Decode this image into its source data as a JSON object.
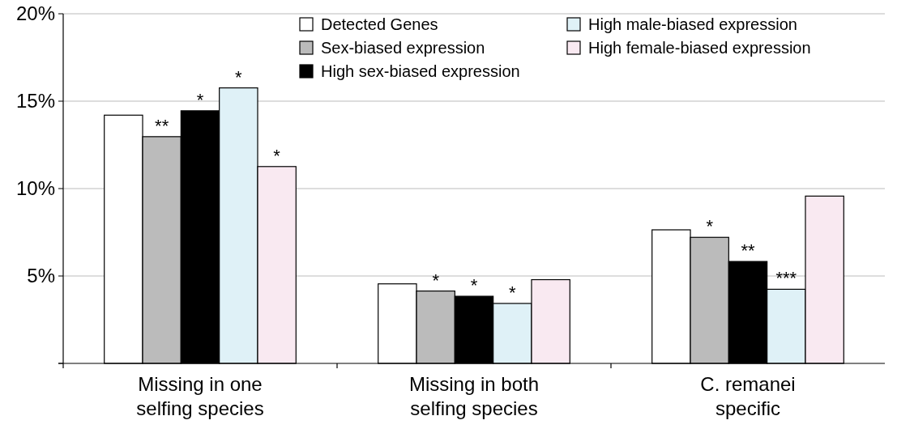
{
  "chart_data": {
    "type": "bar",
    "categories": [
      "Missing in one selfing species",
      "Missing in both selfing species",
      "C. remanei specific"
    ],
    "series": [
      {
        "name": "Detected Genes",
        "color": "#ffffff",
        "values": [
          14.2,
          4.55,
          7.64
        ]
      },
      {
        "name": "Sex-biased expression",
        "color": "#bbbbbb",
        "values": [
          12.97,
          4.14,
          7.21
        ],
        "value_labels": [
          "**",
          "*",
          "*"
        ]
      },
      {
        "name": "High sex-biased expression",
        "color": "#000000",
        "values": [
          14.45,
          3.84,
          5.83
        ],
        "value_labels": [
          "*",
          "*",
          "**"
        ]
      },
      {
        "name": "High male-biased expression",
        "color": "#dff1f7",
        "values": [
          15.76,
          3.43,
          4.24
        ],
        "value_labels": [
          "*",
          "*",
          "***"
        ]
      },
      {
        "name": "High female-biased expression",
        "color": "#f9e9f1",
        "values": [
          11.26,
          4.79,
          9.57
        ],
        "value_labels": [
          "*",
          null,
          null
        ]
      }
    ],
    "ylim": [
      0,
      20
    ],
    "yticks": [
      {
        "value": 0,
        "label": null
      },
      {
        "value": 5,
        "label": "5%"
      },
      {
        "value": 10,
        "label": "10%"
      },
      {
        "value": 15,
        "label": "15%"
      },
      {
        "value": 20,
        "label": "20%"
      }
    ],
    "grid": "y",
    "legend": "top right"
  }
}
